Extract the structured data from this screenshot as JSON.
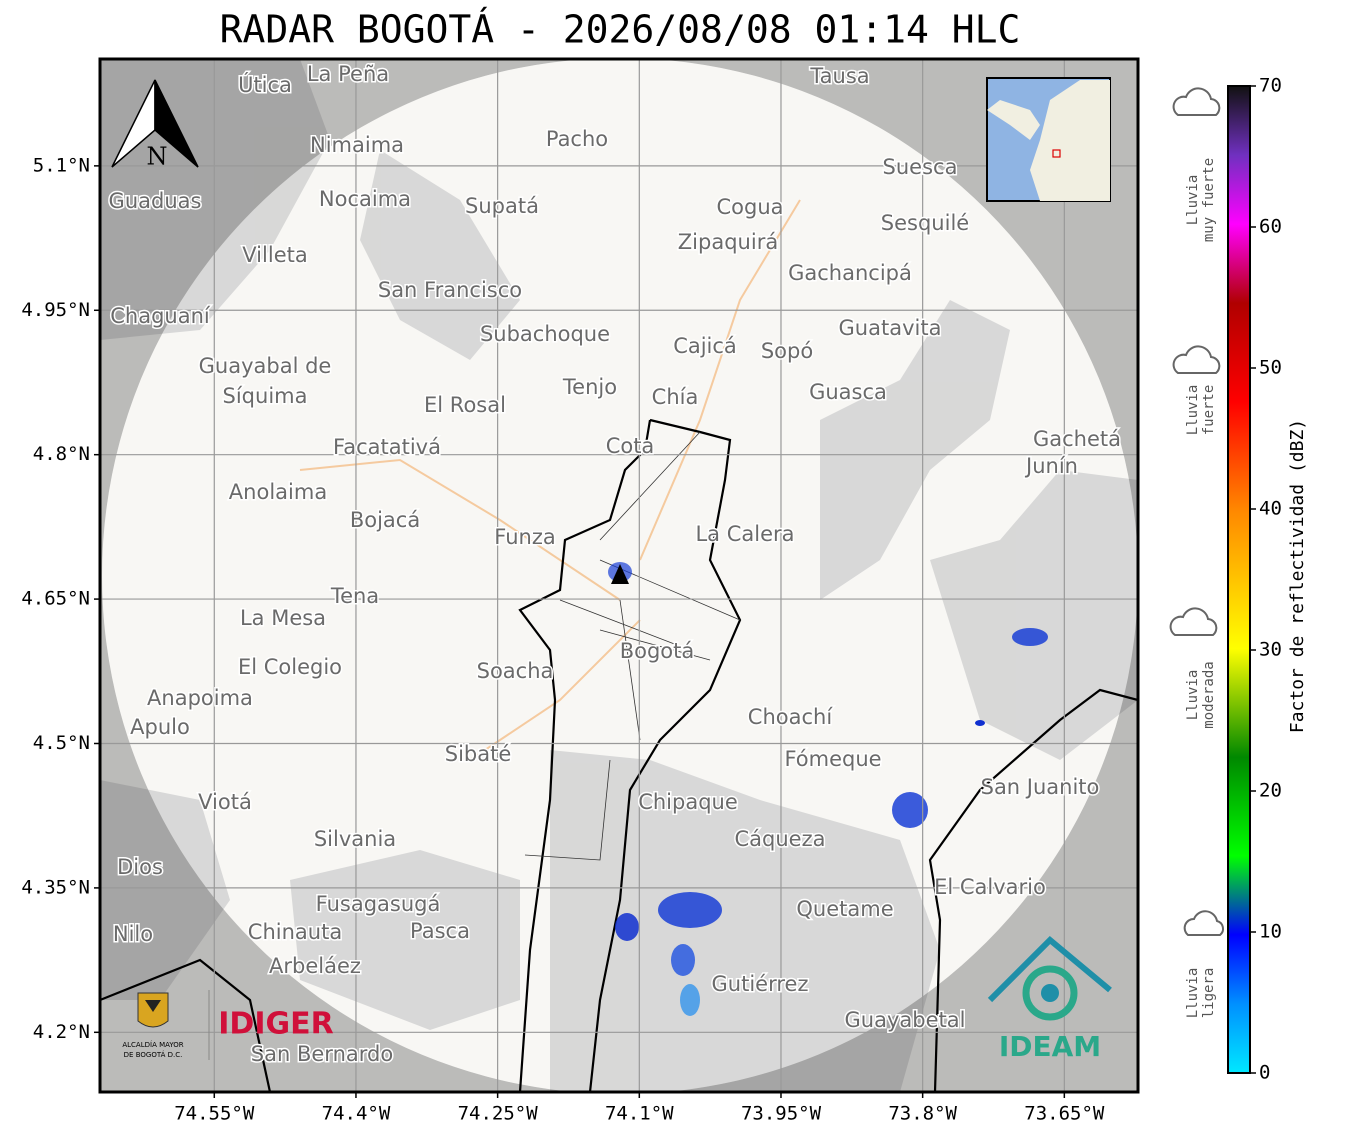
{
  "title": "RADAR BOGOTÁ - 2026/08/08 01:14 HLC",
  "map": {
    "lonlim": [
      -74.671,
      -73.572
    ],
    "latlim": [
      4.138,
      5.211
    ],
    "lonticks": [
      {
        "value": -74.55,
        "label": "74.55°W"
      },
      {
        "value": -74.4,
        "label": "74.4°W"
      },
      {
        "value": -74.25,
        "label": "74.25°W"
      },
      {
        "value": -74.1,
        "label": "74.1°W"
      },
      {
        "value": -73.95,
        "label": "73.95°W"
      },
      {
        "value": -73.8,
        "label": "73.8°W"
      },
      {
        "value": -73.65,
        "label": "73.65°W"
      }
    ],
    "latticks": [
      {
        "value": 5.1,
        "label": "5.1°N"
      },
      {
        "value": 4.95,
        "label": "4.95°N"
      },
      {
        "value": 4.8,
        "label": "4.8°N"
      },
      {
        "value": 4.65,
        "label": "4.65°N"
      },
      {
        "value": 4.5,
        "label": "4.5°N"
      },
      {
        "value": 4.35,
        "label": "4.35°N"
      },
      {
        "value": 4.2,
        "label": "4.2°N"
      }
    ],
    "grid": true,
    "north_label": "N",
    "places": [
      "La Peña",
      "Útica",
      "Tausa",
      "Pacho",
      "Nimaima",
      "Suesca",
      "Guaduas",
      "Nocaima",
      "Supatá",
      "Cogua",
      "Sesquilé",
      "Zipaquirá",
      "Villeta",
      "Gachancipá",
      "San Francisco",
      "Chaguaní",
      "Guatavita",
      "Subachoque",
      "Cajicá",
      "Sopó",
      "Guayabal de",
      "Síquima",
      "Tenjo",
      "Guasca",
      "Chía",
      "El Rosal",
      "Facatativá",
      "Cota",
      "Gachetá",
      "Junín",
      "Anolaima",
      "Bojacá",
      "Funza",
      "La Calera",
      "Tena",
      "La Mesa",
      "Bogotá",
      "Soacha",
      "El Colegio",
      "Anapoima",
      "Apulo",
      "Choachí",
      "Fómeque",
      "Sibaté",
      "San Juanito",
      "Chipaque",
      "Viotá",
      "Silvania",
      "Cáqueza",
      "Dios",
      "El Calvario",
      "Fusagasugá",
      "Quetame",
      "Chinauta",
      "Pasca",
      "Nilo",
      "Arbeláez",
      "Gutiérrez",
      "Guayabetal",
      "San Bernardo"
    ]
  },
  "colorbar": {
    "label": "Factor de reflectividad (dBZ)",
    "lim": [
      0,
      70
    ],
    "ticks": [
      0,
      10,
      20,
      30,
      40,
      50,
      60,
      70
    ]
  },
  "rain_classes": [
    [
      "Lluvia",
      "muy fuerte"
    ],
    [
      "Lluvia",
      "fuerte"
    ],
    [
      "Lluvia",
      "moderada"
    ],
    [
      "Lluvia",
      "ligera"
    ]
  ],
  "logos": {
    "alcaldia": [
      "ALCALDÍA MAYOR",
      "DE BOGOTÁ D.C."
    ],
    "idiger": "IDIGER",
    "ideam": "IDEAM"
  }
}
